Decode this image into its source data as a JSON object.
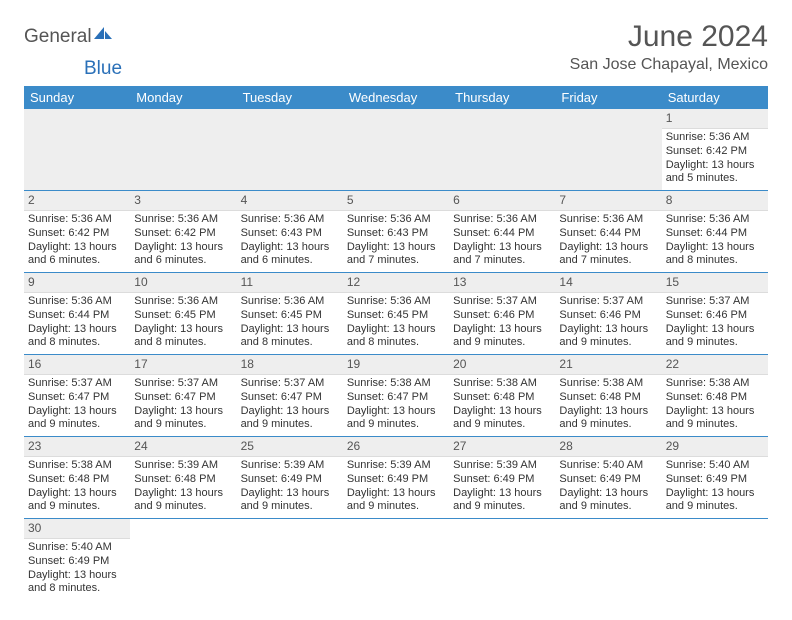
{
  "brand": {
    "name1": "General",
    "name2": "Blue"
  },
  "title": "June 2024",
  "subtitle": "San Jose Chapayal, Mexico",
  "colors": {
    "header_bg": "#3b8bc9",
    "header_text": "#ffffff",
    "daynum_bg": "#eeeeee",
    "week_border": "#3b8bc9",
    "title_color": "#555555",
    "text_color": "#333333",
    "brand_blue": "#2a70b8"
  },
  "day_names": [
    "Sunday",
    "Monday",
    "Tuesday",
    "Wednesday",
    "Thursday",
    "Friday",
    "Saturday"
  ],
  "weeks": [
    [
      {
        "blank": true
      },
      {
        "blank": true
      },
      {
        "blank": true
      },
      {
        "blank": true
      },
      {
        "blank": true
      },
      {
        "blank": true
      },
      {
        "day": "1",
        "sunrise": "Sunrise: 5:36 AM",
        "sunset": "Sunset: 6:42 PM",
        "daylight": "Daylight: 13 hours and 5 minutes."
      }
    ],
    [
      {
        "day": "2",
        "sunrise": "Sunrise: 5:36 AM",
        "sunset": "Sunset: 6:42 PM",
        "daylight": "Daylight: 13 hours and 6 minutes."
      },
      {
        "day": "3",
        "sunrise": "Sunrise: 5:36 AM",
        "sunset": "Sunset: 6:42 PM",
        "daylight": "Daylight: 13 hours and 6 minutes."
      },
      {
        "day": "4",
        "sunrise": "Sunrise: 5:36 AM",
        "sunset": "Sunset: 6:43 PM",
        "daylight": "Daylight: 13 hours and 6 minutes."
      },
      {
        "day": "5",
        "sunrise": "Sunrise: 5:36 AM",
        "sunset": "Sunset: 6:43 PM",
        "daylight": "Daylight: 13 hours and 7 minutes."
      },
      {
        "day": "6",
        "sunrise": "Sunrise: 5:36 AM",
        "sunset": "Sunset: 6:44 PM",
        "daylight": "Daylight: 13 hours and 7 minutes."
      },
      {
        "day": "7",
        "sunrise": "Sunrise: 5:36 AM",
        "sunset": "Sunset: 6:44 PM",
        "daylight": "Daylight: 13 hours and 7 minutes."
      },
      {
        "day": "8",
        "sunrise": "Sunrise: 5:36 AM",
        "sunset": "Sunset: 6:44 PM",
        "daylight": "Daylight: 13 hours and 8 minutes."
      }
    ],
    [
      {
        "day": "9",
        "sunrise": "Sunrise: 5:36 AM",
        "sunset": "Sunset: 6:44 PM",
        "daylight": "Daylight: 13 hours and 8 minutes."
      },
      {
        "day": "10",
        "sunrise": "Sunrise: 5:36 AM",
        "sunset": "Sunset: 6:45 PM",
        "daylight": "Daylight: 13 hours and 8 minutes."
      },
      {
        "day": "11",
        "sunrise": "Sunrise: 5:36 AM",
        "sunset": "Sunset: 6:45 PM",
        "daylight": "Daylight: 13 hours and 8 minutes."
      },
      {
        "day": "12",
        "sunrise": "Sunrise: 5:36 AM",
        "sunset": "Sunset: 6:45 PM",
        "daylight": "Daylight: 13 hours and 8 minutes."
      },
      {
        "day": "13",
        "sunrise": "Sunrise: 5:37 AM",
        "sunset": "Sunset: 6:46 PM",
        "daylight": "Daylight: 13 hours and 9 minutes."
      },
      {
        "day": "14",
        "sunrise": "Sunrise: 5:37 AM",
        "sunset": "Sunset: 6:46 PM",
        "daylight": "Daylight: 13 hours and 9 minutes."
      },
      {
        "day": "15",
        "sunrise": "Sunrise: 5:37 AM",
        "sunset": "Sunset: 6:46 PM",
        "daylight": "Daylight: 13 hours and 9 minutes."
      }
    ],
    [
      {
        "day": "16",
        "sunrise": "Sunrise: 5:37 AM",
        "sunset": "Sunset: 6:47 PM",
        "daylight": "Daylight: 13 hours and 9 minutes."
      },
      {
        "day": "17",
        "sunrise": "Sunrise: 5:37 AM",
        "sunset": "Sunset: 6:47 PM",
        "daylight": "Daylight: 13 hours and 9 minutes."
      },
      {
        "day": "18",
        "sunrise": "Sunrise: 5:37 AM",
        "sunset": "Sunset: 6:47 PM",
        "daylight": "Daylight: 13 hours and 9 minutes."
      },
      {
        "day": "19",
        "sunrise": "Sunrise: 5:38 AM",
        "sunset": "Sunset: 6:47 PM",
        "daylight": "Daylight: 13 hours and 9 minutes."
      },
      {
        "day": "20",
        "sunrise": "Sunrise: 5:38 AM",
        "sunset": "Sunset: 6:48 PM",
        "daylight": "Daylight: 13 hours and 9 minutes."
      },
      {
        "day": "21",
        "sunrise": "Sunrise: 5:38 AM",
        "sunset": "Sunset: 6:48 PM",
        "daylight": "Daylight: 13 hours and 9 minutes."
      },
      {
        "day": "22",
        "sunrise": "Sunrise: 5:38 AM",
        "sunset": "Sunset: 6:48 PM",
        "daylight": "Daylight: 13 hours and 9 minutes."
      }
    ],
    [
      {
        "day": "23",
        "sunrise": "Sunrise: 5:38 AM",
        "sunset": "Sunset: 6:48 PM",
        "daylight": "Daylight: 13 hours and 9 minutes."
      },
      {
        "day": "24",
        "sunrise": "Sunrise: 5:39 AM",
        "sunset": "Sunset: 6:48 PM",
        "daylight": "Daylight: 13 hours and 9 minutes."
      },
      {
        "day": "25",
        "sunrise": "Sunrise: 5:39 AM",
        "sunset": "Sunset: 6:49 PM",
        "daylight": "Daylight: 13 hours and 9 minutes."
      },
      {
        "day": "26",
        "sunrise": "Sunrise: 5:39 AM",
        "sunset": "Sunset: 6:49 PM",
        "daylight": "Daylight: 13 hours and 9 minutes."
      },
      {
        "day": "27",
        "sunrise": "Sunrise: 5:39 AM",
        "sunset": "Sunset: 6:49 PM",
        "daylight": "Daylight: 13 hours and 9 minutes."
      },
      {
        "day": "28",
        "sunrise": "Sunrise: 5:40 AM",
        "sunset": "Sunset: 6:49 PM",
        "daylight": "Daylight: 13 hours and 9 minutes."
      },
      {
        "day": "29",
        "sunrise": "Sunrise: 5:40 AM",
        "sunset": "Sunset: 6:49 PM",
        "daylight": "Daylight: 13 hours and 9 minutes."
      }
    ],
    [
      {
        "day": "30",
        "sunrise": "Sunrise: 5:40 AM",
        "sunset": "Sunset: 6:49 PM",
        "daylight": "Daylight: 13 hours and 8 minutes."
      },
      {
        "blank": true
      },
      {
        "blank": true
      },
      {
        "blank": true
      },
      {
        "blank": true
      },
      {
        "blank": true
      },
      {
        "blank": true
      }
    ]
  ]
}
